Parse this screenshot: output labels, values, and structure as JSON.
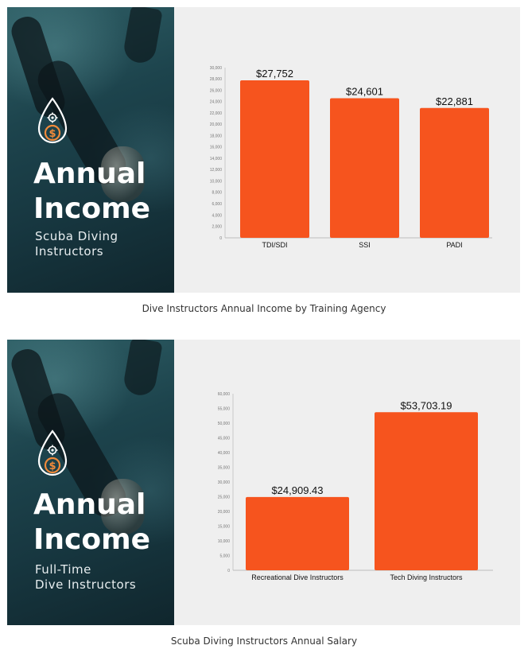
{
  "figures": [
    {
      "panel": {
        "title_line1": "Annual",
        "title_line2": "Income",
        "subtitle_line1": "Scuba Diving",
        "subtitle_line2": "Instructors"
      },
      "caption": "Dive Instructors Annual Income by Training Agency"
    },
    {
      "panel": {
        "title_line1": "Annual",
        "title_line2": "Income",
        "subtitle_line1": "Full-Time",
        "subtitle_line2": "Dive Instructors"
      },
      "caption": "Scuba Diving Instructors Annual Salary"
    }
  ],
  "colors": {
    "bar": "#f6541e",
    "accent_logo": "#f08a3a"
  },
  "icons": {
    "logo": "drop-gear-dollar-icon"
  },
  "chart_data": [
    {
      "type": "bar",
      "categories": [
        "TDI/SDI",
        "SSI",
        "PADI"
      ],
      "values": [
        27752,
        24601,
        22881
      ],
      "data_labels": [
        "$27,752",
        "$24,601",
        "$22,881"
      ],
      "ylim": [
        0,
        30000
      ],
      "yticks": [
        "0",
        "2,000",
        "4,000",
        "6,000",
        "8,000",
        "10,000",
        "12,000",
        "14,000",
        "16,000",
        "18,000",
        "20,000",
        "22,000",
        "24,000",
        "26,000",
        "28,000",
        "30,000"
      ],
      "ytick_values": [
        0,
        2000,
        4000,
        6000,
        8000,
        10000,
        12000,
        14000,
        16000,
        18000,
        20000,
        22000,
        24000,
        26000,
        28000,
        30000
      ],
      "grid": false,
      "legend": "none"
    },
    {
      "type": "bar",
      "categories": [
        "Recreational Dive Instructors",
        "Tech Diving Instructors"
      ],
      "values": [
        24909.43,
        53703.19
      ],
      "data_labels": [
        "$24,909.43",
        "$53,703.19"
      ],
      "ylim": [
        0,
        60000
      ],
      "yticks": [
        "0",
        "5,000",
        "10,000",
        "15,000",
        "20,000",
        "25,000",
        "30,000",
        "35,000",
        "40,000",
        "45,000",
        "50,000",
        "55,000",
        "60,000"
      ],
      "ytick_values": [
        0,
        5000,
        10000,
        15000,
        20000,
        25000,
        30000,
        35000,
        40000,
        45000,
        50000,
        55000,
        60000
      ],
      "grid": false,
      "legend": "none"
    }
  ]
}
